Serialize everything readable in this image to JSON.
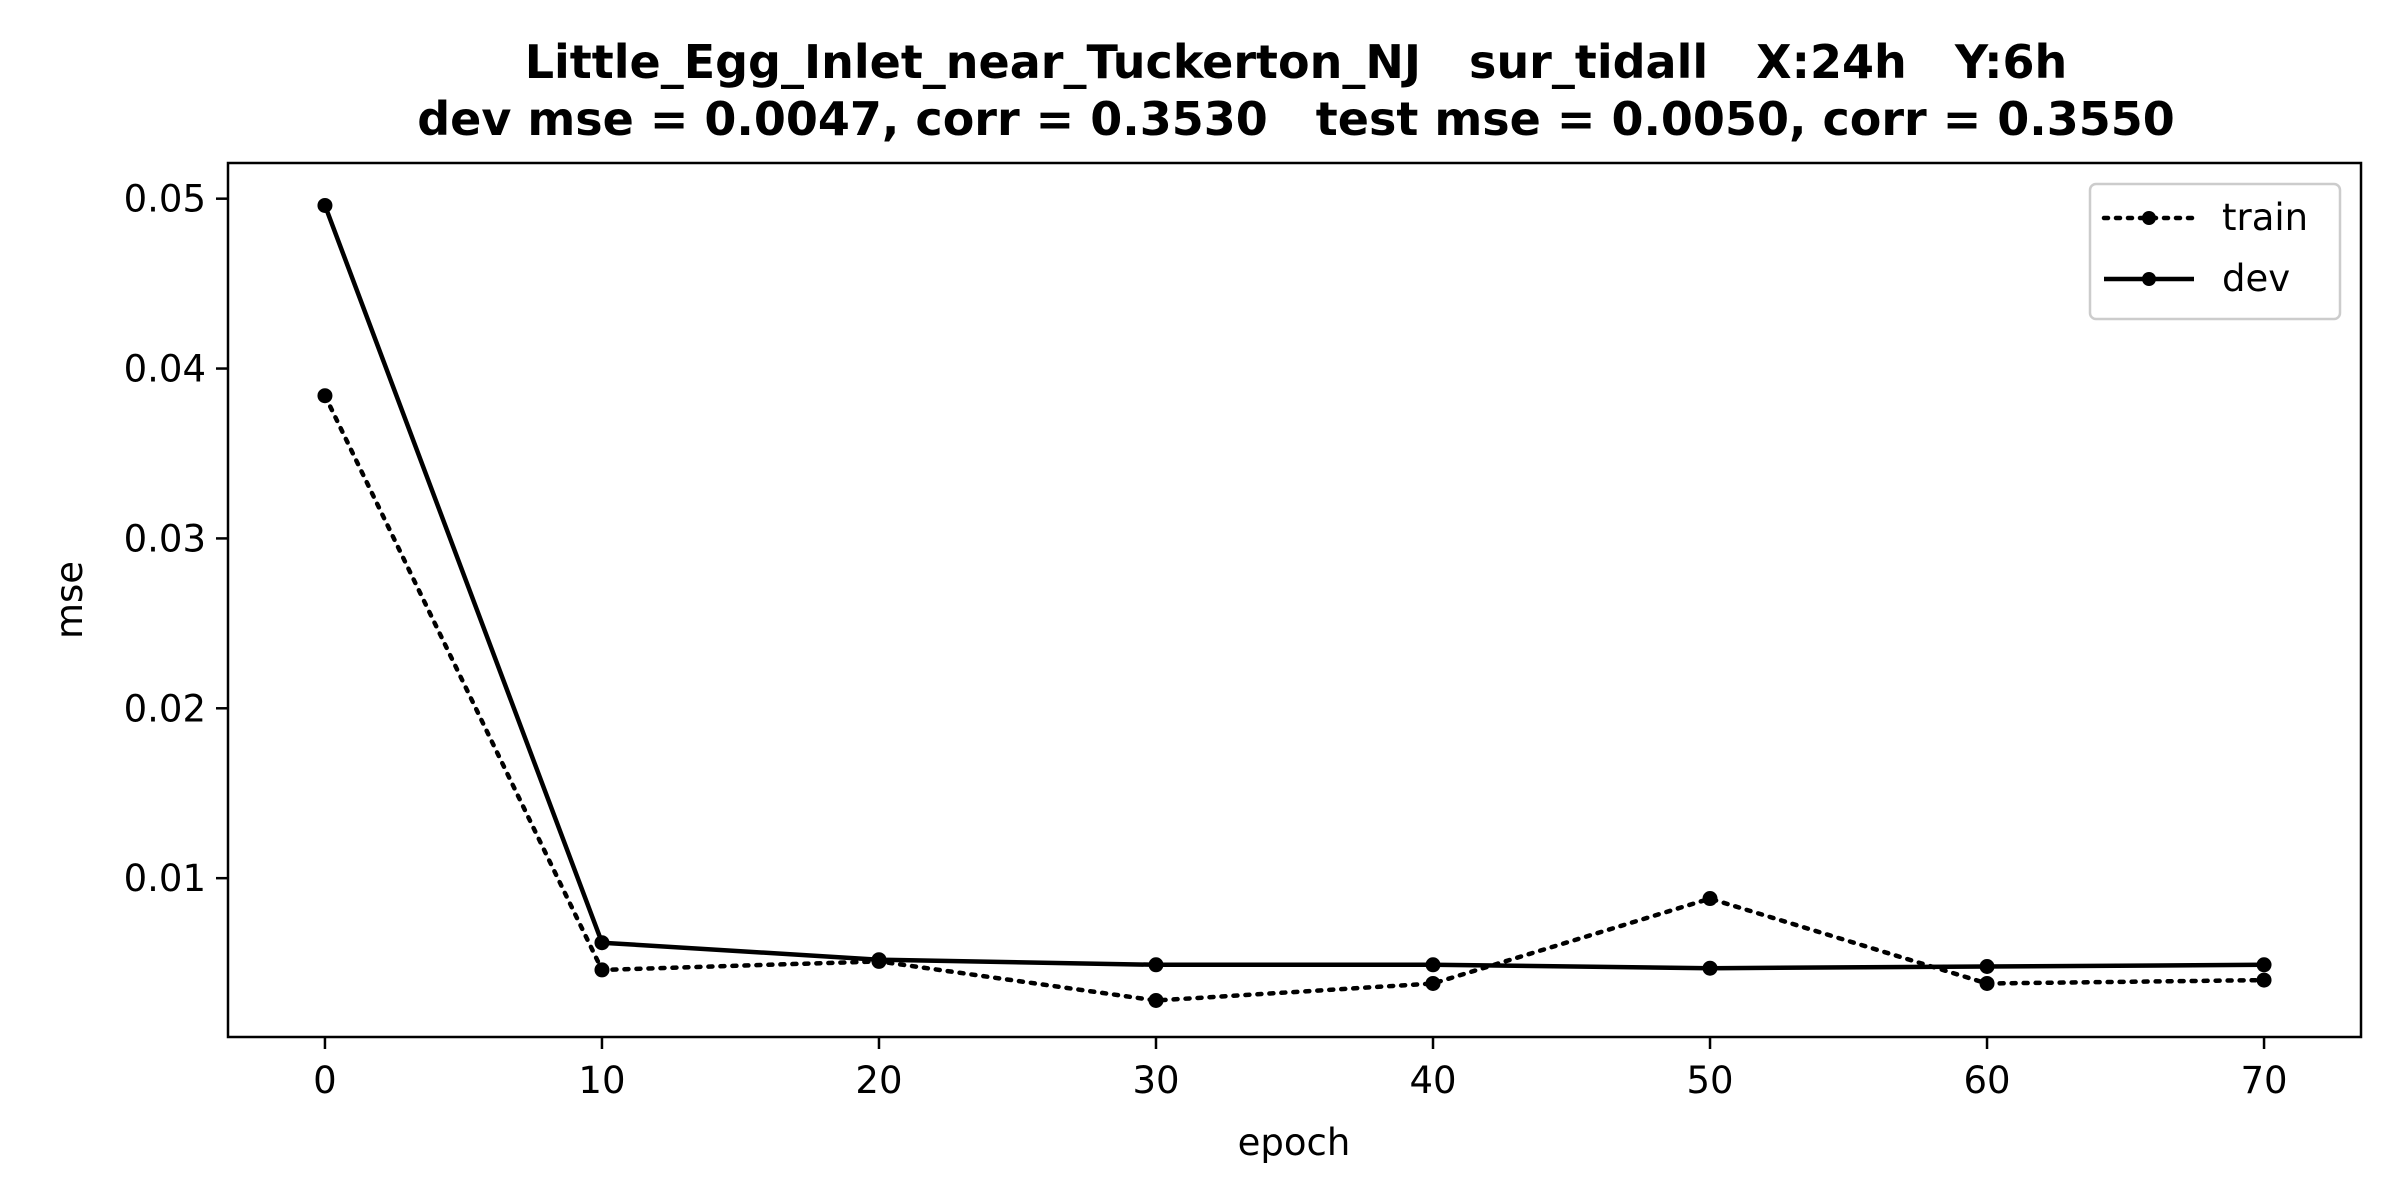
{
  "chart_data": {
    "type": "line",
    "title": "Little_Egg_Inlet_near_Tuckerton_NJ   sur_tidall   X:24h   Y:6h",
    "subtitle": "dev mse = 0.0047, corr = 0.3530   test mse = 0.0050, corr = 0.3550",
    "xlabel": "epoch",
    "ylabel": "mse",
    "xlim": [
      -3.5,
      73.5
    ],
    "ylim": [
      0.00065,
      0.0521
    ],
    "x_ticks": [
      0,
      10,
      20,
      30,
      40,
      50,
      60,
      70
    ],
    "y_ticks": [
      0.01,
      0.02,
      0.03,
      0.04,
      0.05
    ],
    "x_tick_labels": [
      "0",
      "10",
      "20",
      "30",
      "40",
      "50",
      "60",
      "70"
    ],
    "y_tick_labels": [
      "0.01",
      "0.02",
      "0.03",
      "0.04",
      "0.05"
    ],
    "x": [
      0,
      10,
      20,
      30,
      40,
      50,
      60,
      70
    ],
    "series": [
      {
        "name": "train",
        "line_style": "dotted",
        "marker": "circle",
        "color": "#000000",
        "values": [
          0.0384,
          0.0046,
          0.0051,
          0.0028,
          0.0038,
          0.0088,
          0.0038,
          0.004
        ]
      },
      {
        "name": "dev",
        "line_style": "solid",
        "marker": "circle",
        "color": "#000000",
        "values": [
          0.0496,
          0.0062,
          0.0052,
          0.0049,
          0.0049,
          0.0047,
          0.0048,
          0.0049
        ]
      }
    ],
    "grid": false,
    "legend_position": "top-right"
  }
}
